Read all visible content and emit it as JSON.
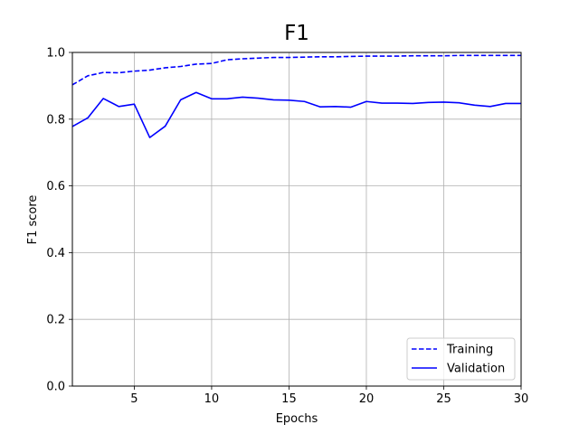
{
  "chart_data": {
    "type": "line",
    "title": "F1",
    "xlabel": "Epochs",
    "ylabel": "F1 score",
    "xlim": [
      1,
      30
    ],
    "ylim": [
      0.0,
      1.0
    ],
    "xticks": [
      5,
      10,
      15,
      20,
      25,
      30
    ],
    "yticks": [
      0.0,
      0.2,
      0.4,
      0.6,
      0.8,
      1.0
    ],
    "xtick_labels": [
      "5",
      "10",
      "15",
      "20",
      "25",
      "30"
    ],
    "ytick_labels": [
      "0.0",
      "0.2",
      "0.4",
      "0.6",
      "0.8",
      "1.0"
    ],
    "grid": true,
    "legend_position": "bottom-right",
    "x": [
      1,
      2,
      3,
      4,
      5,
      6,
      7,
      8,
      9,
      10,
      11,
      12,
      13,
      14,
      15,
      16,
      17,
      18,
      19,
      20,
      21,
      22,
      23,
      24,
      25,
      26,
      27,
      28,
      29,
      30
    ],
    "series": [
      {
        "name": "Training",
        "style": "dashed",
        "color": "#0000ff",
        "values": [
          0.903,
          0.93,
          0.94,
          0.939,
          0.944,
          0.947,
          0.954,
          0.958,
          0.965,
          0.967,
          0.978,
          0.981,
          0.983,
          0.985,
          0.985,
          0.986,
          0.987,
          0.987,
          0.988,
          0.989,
          0.989,
          0.989,
          0.99,
          0.99,
          0.99,
          0.991,
          0.991,
          0.991,
          0.991,
          0.991
        ]
      },
      {
        "name": "Validation",
        "style": "solid",
        "color": "#0000ff",
        "values": [
          0.778,
          0.804,
          0.862,
          0.838,
          0.845,
          0.745,
          0.779,
          0.858,
          0.88,
          0.861,
          0.861,
          0.866,
          0.863,
          0.858,
          0.857,
          0.853,
          0.837,
          0.838,
          0.836,
          0.853,
          0.848,
          0.848,
          0.847,
          0.85,
          0.851,
          0.849,
          0.842,
          0.838,
          0.847,
          0.847
        ]
      }
    ]
  }
}
